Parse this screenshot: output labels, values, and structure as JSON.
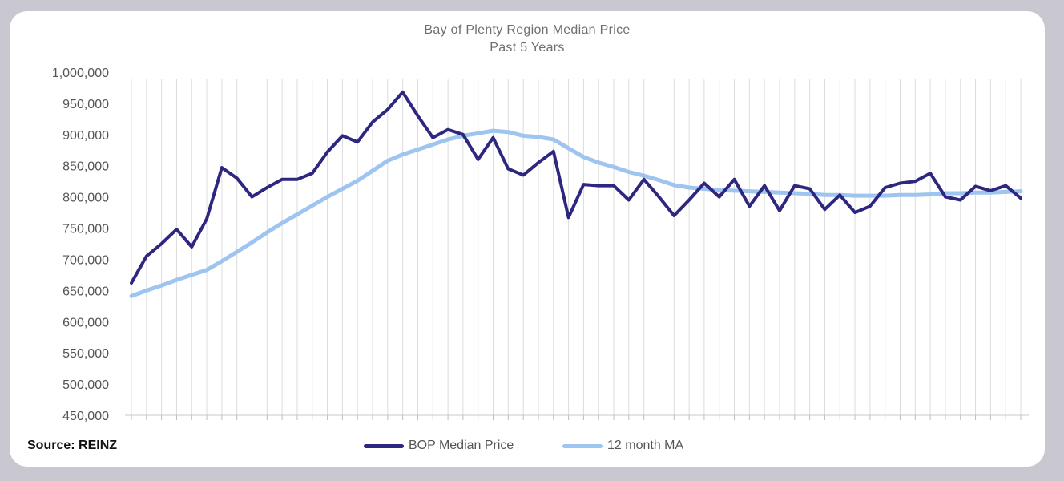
{
  "chart_data": {
    "type": "line",
    "title": "Bay of Plenty Region Median Price",
    "subtitle": "Past 5 Years",
    "xlabel": "",
    "ylabel": "",
    "ylim": [
      450000,
      1000000
    ],
    "yticks": [
      "1,000,000",
      "950,000",
      "900,000",
      "850,000",
      "800,000",
      "750,000",
      "700,000",
      "650,000",
      "600,000",
      "550,000",
      "500,000",
      "450,000"
    ],
    "grid": "vertical",
    "legend_position": "bottom",
    "series": [
      {
        "name": "BOP Median Price",
        "color": "#2e2780",
        "values": [
          662000,
          705000,
          725000,
          748000,
          720000,
          765000,
          847000,
          830000,
          800000,
          815000,
          828000,
          828000,
          838000,
          872000,
          898000,
          888000,
          920000,
          940000,
          968000,
          930000,
          895000,
          908000,
          900000,
          860000,
          895000,
          845000,
          835000,
          855000,
          873000,
          767000,
          820000,
          818000,
          818000,
          795000,
          828000,
          800000,
          770000,
          795000,
          822000,
          800000,
          828000,
          785000,
          818000,
          778000,
          818000,
          813000,
          780000,
          803000,
          775000,
          785000,
          815000,
          822000,
          825000,
          838000,
          800000,
          795000,
          817000,
          810000,
          818000,
          798000
        ]
      },
      {
        "name": "12 month MA",
        "color": "#9ec4f0",
        "values": [
          641000,
          650000,
          658000,
          667000,
          675000,
          683000,
          697000,
          712000,
          727000,
          743000,
          758000,
          772000,
          786000,
          800000,
          813000,
          826000,
          842000,
          858000,
          868000,
          876000,
          884000,
          892000,
          898000,
          902000,
          906000,
          904000,
          898000,
          896000,
          892000,
          878000,
          864000,
          855000,
          848000,
          840000,
          834000,
          827000,
          819000,
          815000,
          813000,
          811000,
          810000,
          809000,
          808000,
          807000,
          806000,
          805000,
          803000,
          803000,
          802000,
          802000,
          802000,
          803000,
          803000,
          804000,
          806000,
          806000,
          807000,
          807000,
          808000,
          809000
        ]
      }
    ]
  },
  "footer": {
    "source": "Source: REINZ"
  }
}
